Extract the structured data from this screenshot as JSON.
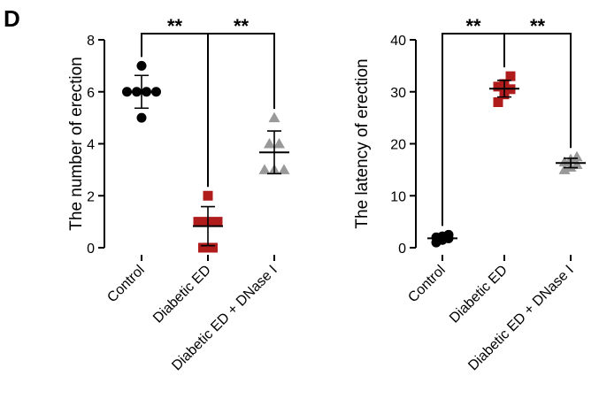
{
  "panel_label": "D",
  "chart_data": [
    {
      "type": "dot",
      "ylabel": "The number of erection",
      "categories": [
        "Control",
        "Diabetic ED",
        "Diabetic ED + DNase I"
      ],
      "ylim": [
        0,
        8
      ],
      "yticks": [
        0,
        2,
        4,
        6,
        8
      ],
      "annotations": [
        "**",
        "**"
      ],
      "groups": [
        {
          "marker": "circle",
          "color": "#000000",
          "values": [
            5,
            6,
            6,
            6,
            6,
            7
          ],
          "mean": 6,
          "sd": 0.63
        },
        {
          "marker": "square",
          "color": "#b01c1c",
          "values": [
            0,
            0,
            1,
            1,
            1,
            2
          ],
          "mean": 0.83,
          "sd": 0.75
        },
        {
          "marker": "triangle",
          "color": "#999999",
          "values": [
            3,
            3,
            3,
            4,
            4,
            5
          ],
          "mean": 3.67,
          "sd": 0.82
        }
      ]
    },
    {
      "type": "dot",
      "ylabel": "The latency of erection",
      "categories": [
        "Control",
        "Diabetic ED",
        "Diabetic ED + DNase I"
      ],
      "ylim": [
        0,
        40
      ],
      "yticks": [
        0,
        10,
        20,
        30,
        40
      ],
      "annotations": [
        "**",
        "**"
      ],
      "groups": [
        {
          "marker": "circle",
          "color": "#000000",
          "values": [
            1.0,
            1.5,
            1.8,
            2.0,
            2.2,
            2.5
          ],
          "mean": 1.8,
          "sd": 0.5
        },
        {
          "marker": "square",
          "color": "#b01c1c",
          "values": [
            28,
            29.5,
            30.5,
            31,
            31.5,
            33
          ],
          "mean": 30.6,
          "sd": 1.6
        },
        {
          "marker": "triangle",
          "color": "#999999",
          "values": [
            15,
            15.5,
            16,
            16.5,
            17,
            17.5
          ],
          "mean": 16.3,
          "sd": 0.9
        }
      ]
    }
  ]
}
